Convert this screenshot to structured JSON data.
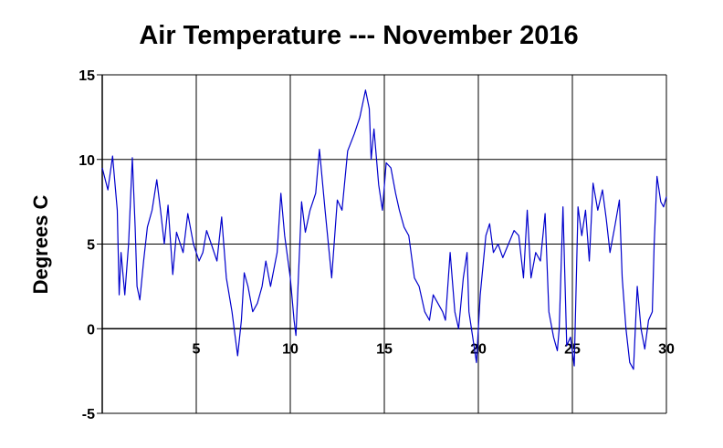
{
  "chart_data": {
    "type": "line",
    "title": "Air Temperature --- November 2016",
    "y_label": "Degrees C",
    "x": [
      0,
      0.3,
      0.55,
      0.8,
      0.9,
      1.0,
      1.2,
      1.4,
      1.6,
      1.75,
      1.85,
      2.0,
      2.2,
      2.4,
      2.65,
      2.9,
      3.1,
      3.3,
      3.5,
      3.75,
      3.95,
      4.3,
      4.55,
      4.85,
      5.15,
      5.35,
      5.55,
      5.8,
      6.1,
      6.35,
      6.6,
      6.9,
      7.2,
      7.4,
      7.55,
      7.75,
      8.0,
      8.25,
      8.5,
      8.7,
      8.95,
      9.3,
      9.5,
      9.7,
      10.0,
      10.2,
      10.3,
      10.6,
      10.8,
      11.05,
      11.35,
      11.55,
      11.85,
      12.2,
      12.5,
      12.75,
      13.05,
      13.4,
      13.7,
      14.0,
      14.2,
      14.3,
      14.45,
      14.7,
      14.9,
      15.1,
      15.35,
      15.6,
      15.8,
      16.05,
      16.3,
      16.6,
      16.85,
      17.15,
      17.4,
      17.6,
      17.85,
      18.1,
      18.25,
      18.5,
      18.75,
      18.95,
      19.2,
      19.4,
      19.5,
      19.7,
      19.9,
      20.1,
      20.4,
      20.6,
      20.8,
      21.05,
      21.3,
      21.6,
      21.9,
      22.15,
      22.4,
      22.6,
      22.8,
      23.05,
      23.3,
      23.55,
      23.75,
      24.0,
      24.2,
      24.3,
      24.5,
      24.7,
      24.9,
      25.1,
      25.3,
      25.5,
      25.7,
      25.9,
      26.1,
      26.35,
      26.6,
      26.8,
      27.0,
      27.25,
      27.5,
      27.65,
      27.85,
      28.05,
      28.25,
      28.45,
      28.65,
      28.85,
      29.05,
      29.25,
      29.35,
      29.5,
      29.7,
      29.85,
      30.0
    ],
    "series": [
      {
        "name": "Air Temperature",
        "color": "#0000cc",
        "values": [
          9.5,
          8.2,
          10.2,
          7,
          2,
          4.5,
          2,
          5,
          10.1,
          6,
          2.5,
          1.7,
          4,
          6,
          7,
          8.8,
          7,
          5,
          7.3,
          3.2,
          5.7,
          4.5,
          6.8,
          5,
          4,
          4.5,
          5.8,
          5,
          4,
          6.6,
          3,
          1,
          -1.6,
          0.5,
          3.3,
          2.5,
          1,
          1.5,
          2.5,
          4,
          2.5,
          4.5,
          8,
          5.5,
          3,
          0.5,
          -0.4,
          7.5,
          5.7,
          7,
          8,
          10.6,
          7,
          3,
          7.6,
          7,
          10.5,
          11.5,
          12.5,
          14.1,
          13,
          10,
          11.8,
          8.5,
          7,
          9.8,
          9.5,
          8,
          7,
          6,
          5.5,
          3,
          2.5,
          1,
          0.5,
          2,
          1.5,
          1,
          0.5,
          4.5,
          1,
          0,
          3,
          4.5,
          1,
          -0.5,
          -2,
          2,
          5.5,
          6.2,
          4.5,
          5,
          4.2,
          5,
          5.8,
          5.5,
          3,
          7,
          3,
          4.5,
          4,
          6.8,
          1,
          -0.5,
          -1.3,
          0,
          7.2,
          -1,
          -0.5,
          -2.2,
          7.2,
          5.5,
          7,
          4,
          8.6,
          7,
          8.2,
          6.5,
          4.5,
          6,
          7.6,
          3,
          0,
          -2,
          -2.4,
          2.5,
          0,
          -1.2,
          0.5,
          1,
          5,
          9,
          7.5,
          7.2,
          7.8
        ]
      }
    ],
    "xlim": [
      0,
      30
    ],
    "xticks": [
      5,
      10,
      15,
      20,
      25,
      30
    ],
    "ylim": [
      -5,
      15
    ],
    "yticks": [
      -5,
      0,
      5,
      10,
      15
    ],
    "grid": true
  }
}
